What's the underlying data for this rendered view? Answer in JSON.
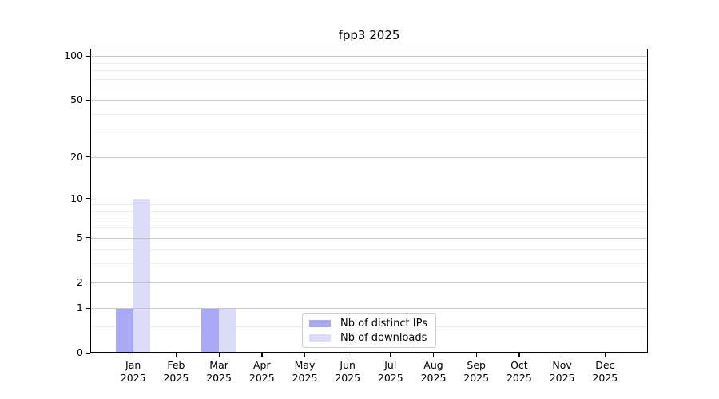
{
  "title": "fpp3 2025",
  "colors": {
    "distinct_ips_bar": "#a9a9f6",
    "downloads_bar": "#dcdcf9",
    "major_gridline": "#c8c8c8",
    "minor_gridline": "#ececec",
    "frame": "#000000",
    "legend_border": "#cccccc",
    "text": "#000000",
    "background": "#ffffff"
  },
  "chart_data": {
    "type": "bar",
    "title": "fpp3 2025",
    "categories": [
      "Jan",
      "Feb",
      "Mar",
      "Apr",
      "May",
      "Jun",
      "Jul",
      "Aug",
      "Sep",
      "Oct",
      "Nov",
      "Dec"
    ],
    "category_year": "2025",
    "series": [
      {
        "name": "Nb of distinct IPs",
        "color": "#a9a9f6",
        "values": [
          1,
          0,
          1,
          0,
          0,
          0,
          0,
          0,
          0,
          0,
          0,
          0
        ]
      },
      {
        "name": "Nb of downloads",
        "color": "#dcdcf9",
        "values": [
          10,
          0,
          1,
          0,
          0,
          0,
          0,
          0,
          0,
          0,
          0,
          0
        ]
      }
    ],
    "xlabel": "",
    "ylabel": "",
    "y_scale": "log1p",
    "ylim": [
      0,
      112
    ],
    "y_ticks": [
      0,
      1,
      2,
      5,
      10,
      20,
      50,
      100
    ],
    "y_minor_ticks": [
      0.5,
      3,
      4,
      6,
      7,
      8,
      9,
      30,
      40,
      60,
      70,
      80,
      90
    ],
    "grid": "horizontal",
    "legend_position": "lower-center-inside"
  }
}
